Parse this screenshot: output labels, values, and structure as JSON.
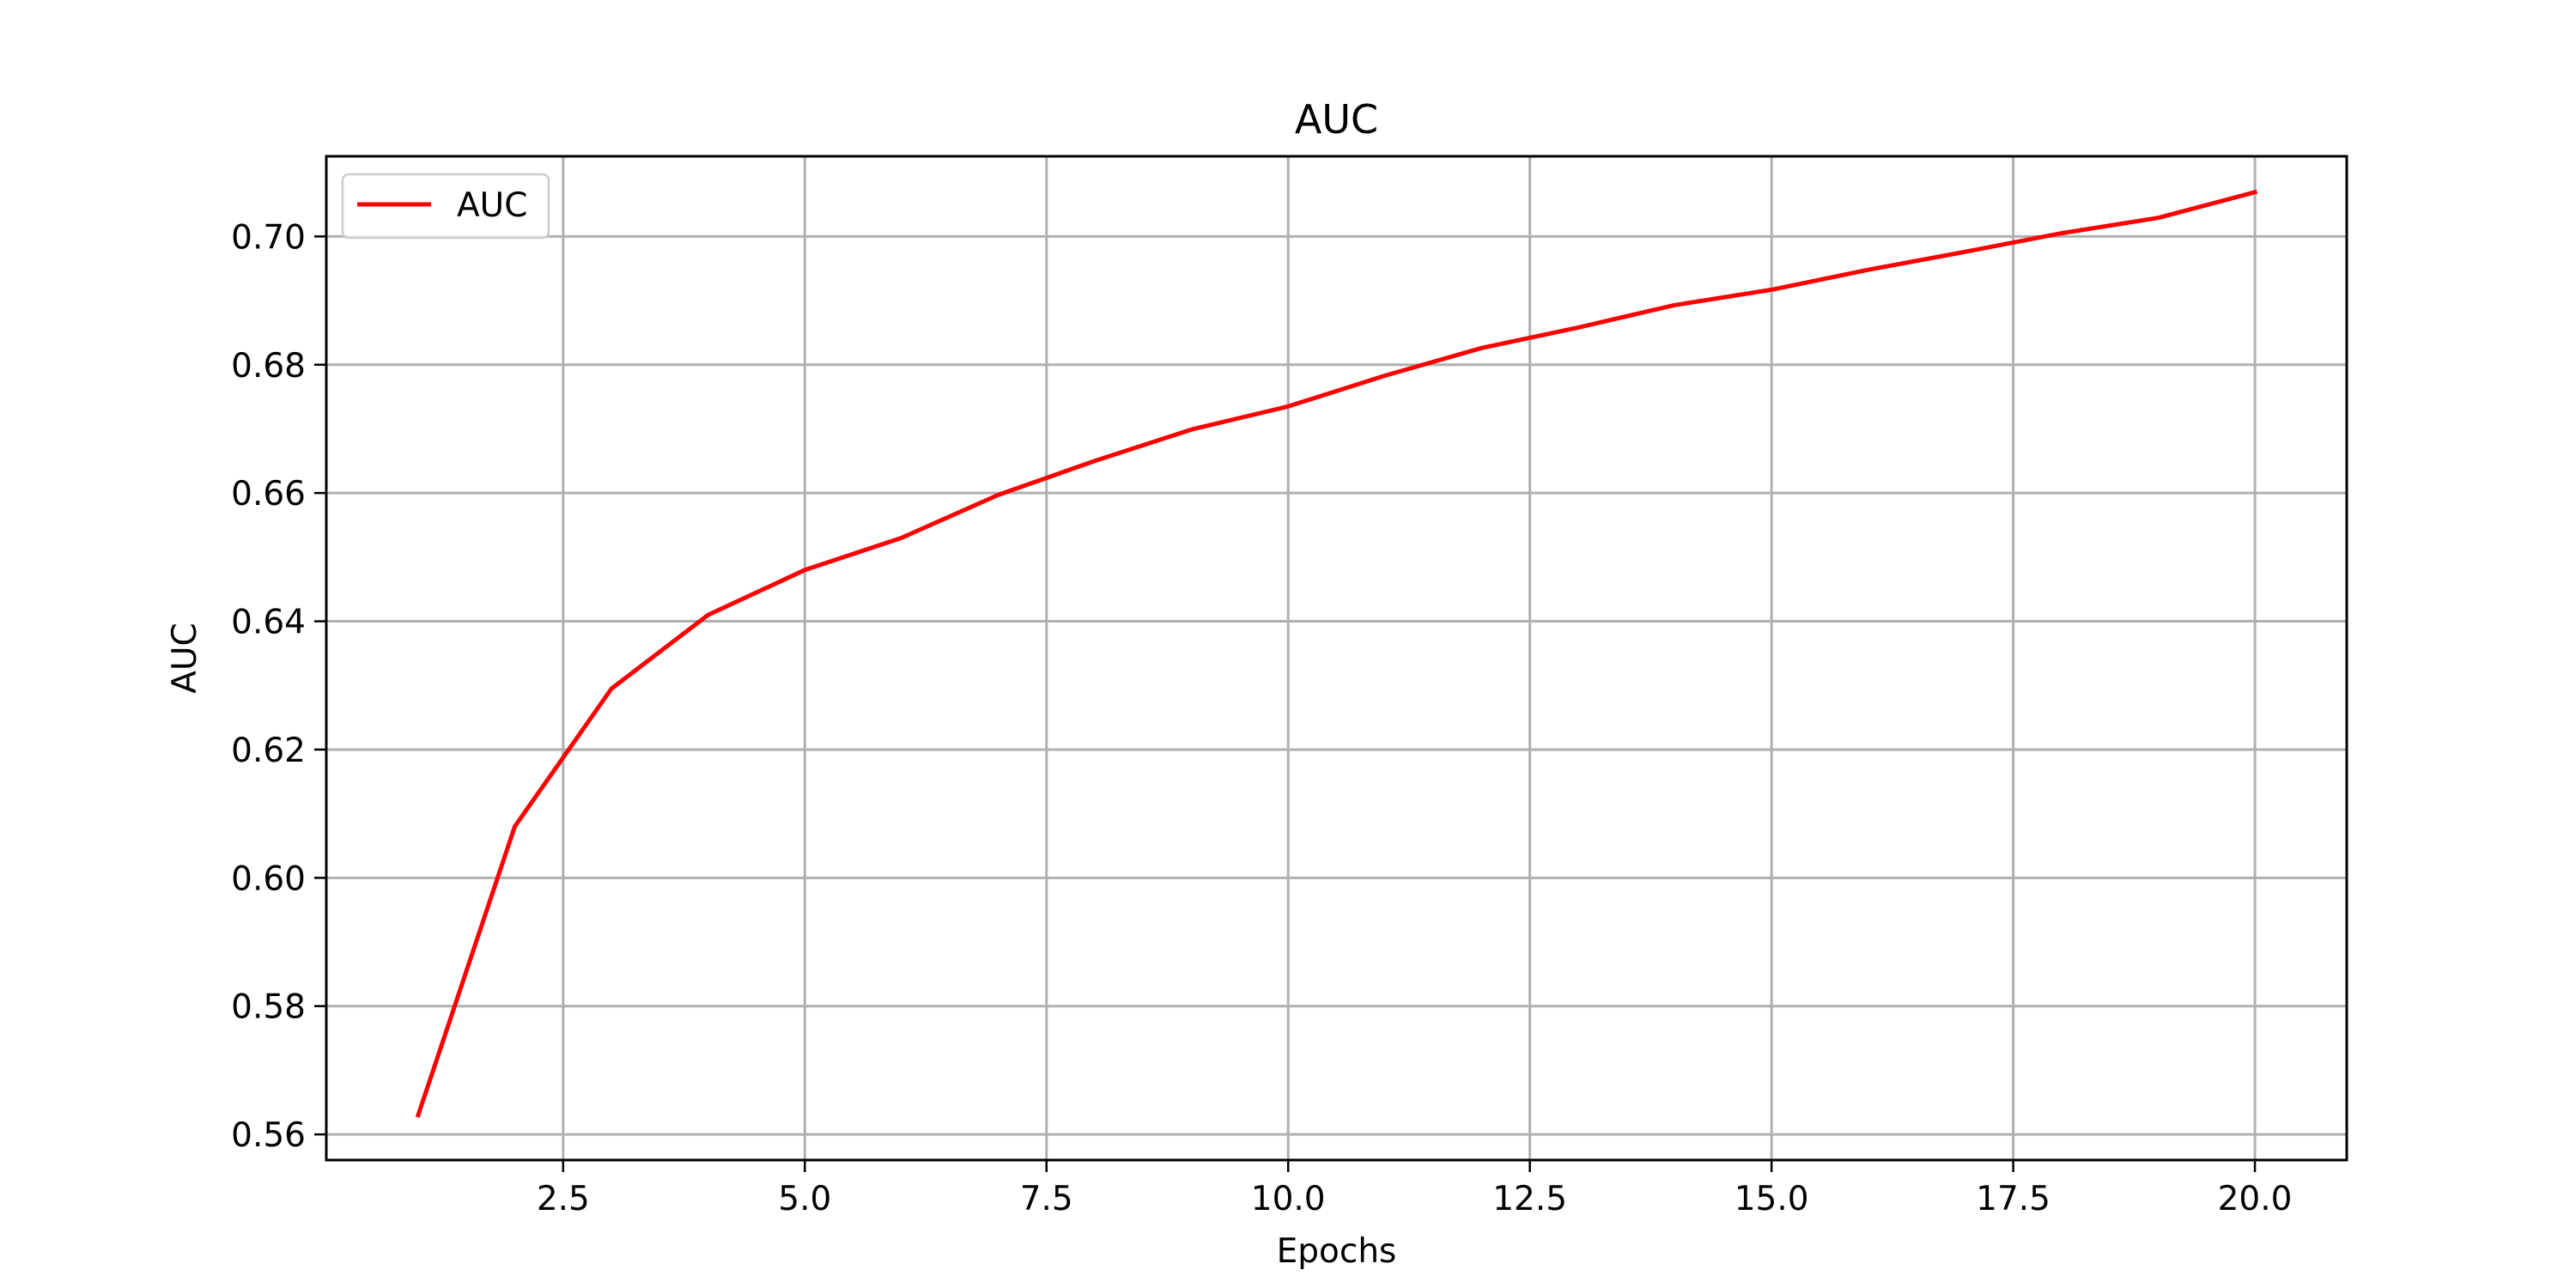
{
  "chart_data": {
    "type": "line",
    "title": "AUC",
    "xlabel": "Epochs",
    "ylabel": "AUC",
    "xlim": [
      0.05,
      20.95
    ],
    "ylim": [
      0.556,
      0.7125
    ],
    "xticks": [
      2.5,
      5.0,
      7.5,
      10.0,
      12.5,
      15.0,
      17.5,
      20.0
    ],
    "xtick_labels": [
      "2.5",
      "5.0",
      "7.5",
      "10.0",
      "12.5",
      "15.0",
      "17.5",
      "20.0"
    ],
    "yticks": [
      0.56,
      0.58,
      0.6,
      0.62,
      0.64,
      0.66,
      0.68,
      0.7
    ],
    "ytick_labels": [
      "0.56",
      "0.58",
      "0.60",
      "0.62",
      "0.64",
      "0.66",
      "0.68",
      "0.70"
    ],
    "grid": true,
    "legend_position": "top-left",
    "x": [
      1,
      2,
      3,
      4,
      5,
      6,
      7,
      8,
      9,
      10,
      11,
      12,
      13,
      14,
      15,
      16,
      17,
      18,
      19,
      20
    ],
    "series": [
      {
        "name": "AUC",
        "color": "#ff0000",
        "values": [
          0.563,
          0.608,
          0.6295,
          0.641,
          0.648,
          0.653,
          0.6597,
          0.665,
          0.6699,
          0.6735,
          0.6783,
          0.6826,
          0.6858,
          0.6893,
          0.6917,
          0.6948,
          0.6976,
          0.7005,
          0.7029,
          0.7069
        ]
      }
    ]
  }
}
